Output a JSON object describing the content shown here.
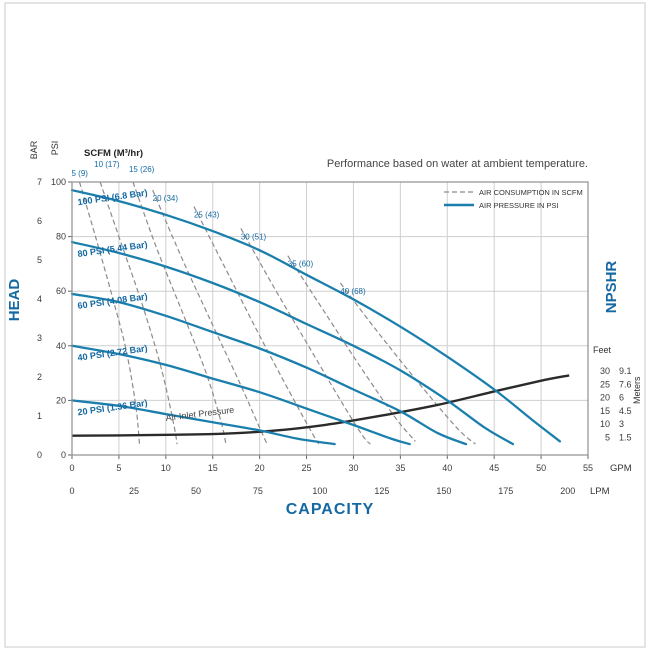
{
  "page": {
    "title": "Performance based on water at ambient temperature."
  },
  "legend": {
    "items": [
      {
        "label": "AIR CONSUMPTION IN SCFM",
        "style": "dashed"
      },
      {
        "label": "AIR PRESSURE IN PSI",
        "style": "solid"
      }
    ]
  },
  "labels": {
    "head": "HEAD",
    "capacity": "CAPACITY",
    "npshr": "NPSHR",
    "bar": "BAR",
    "psi": "PSI",
    "feet": "Feet",
    "meters": "Meters",
    "gpm_unit": "GPM",
    "lpm_unit": "LPM",
    "scfm_header": "SCFM (M³/hr)",
    "air_inlet": "Air Inlet Pressure"
  },
  "colors": {
    "blue": "#1b7fad",
    "labelBlue": "#1369a3",
    "dash": "#8b8b8b",
    "npshr": "#2b2b2b",
    "grid": "#cfcfcf",
    "border": "#8f8f8f",
    "text": "#3c3c3c"
  },
  "chart_data": {
    "type": "line",
    "title": "Performance based on water at ambient temperature.",
    "x_axis": {
      "label": "CAPACITY",
      "units": [
        "GPM",
        "LPM"
      ],
      "gpm_ticks": [
        0,
        5,
        10,
        15,
        20,
        25,
        30,
        35,
        40,
        45,
        50,
        55
      ],
      "lpm_ticks": [
        0,
        25,
        50,
        75,
        100,
        125,
        150,
        175,
        200
      ]
    },
    "y_axis_left": {
      "label": "HEAD",
      "units": [
        "BAR",
        "PSI"
      ],
      "bar_ticks": [
        7,
        6,
        5,
        4,
        3,
        2,
        1,
        0
      ],
      "psi_ticks": [
        100,
        80,
        60,
        40,
        20,
        0
      ],
      "psi_range": [
        0,
        100
      ],
      "bar_range": [
        0,
        7
      ]
    },
    "y_axis_right": {
      "label": "NPSHR",
      "units": [
        "Feet",
        "Meters"
      ],
      "feet_ticks": [
        "30",
        "25",
        "20",
        "15",
        "10",
        "5"
      ],
      "meters_ticks": [
        "9.1",
        "7.6",
        "6",
        "4.5",
        "3",
        "1.5"
      ]
    },
    "pressure_curves": [
      {
        "label": "100 PSI (6.8 Bar)",
        "points": [
          [
            0,
            97
          ],
          [
            5,
            93
          ],
          [
            10,
            88
          ],
          [
            15,
            82
          ],
          [
            20,
            75
          ],
          [
            25,
            66
          ],
          [
            30,
            57
          ],
          [
            35,
            47
          ],
          [
            40,
            36
          ],
          [
            45,
            24
          ],
          [
            49,
            13
          ],
          [
            52,
            5
          ]
        ]
      },
      {
        "label": "80 PSI (5.44 Bar)",
        "points": [
          [
            0,
            78
          ],
          [
            5,
            74
          ],
          [
            10,
            69
          ],
          [
            15,
            63
          ],
          [
            20,
            56
          ],
          [
            25,
            48
          ],
          [
            30,
            40
          ],
          [
            35,
            31
          ],
          [
            40,
            20
          ],
          [
            44,
            10
          ],
          [
            47,
            4
          ]
        ]
      },
      {
        "label": "60 PSI (4.08 Bar)",
        "points": [
          [
            0,
            59
          ],
          [
            5,
            56
          ],
          [
            10,
            51
          ],
          [
            15,
            45
          ],
          [
            20,
            39
          ],
          [
            25,
            32
          ],
          [
            30,
            24
          ],
          [
            35,
            16
          ],
          [
            39,
            8
          ],
          [
            42,
            4
          ]
        ]
      },
      {
        "label": "40 PSI (2.72 Bar)",
        "points": [
          [
            0,
            40
          ],
          [
            5,
            37
          ],
          [
            10,
            33
          ],
          [
            15,
            28
          ],
          [
            20,
            23
          ],
          [
            25,
            17
          ],
          [
            30,
            11
          ],
          [
            34,
            6
          ],
          [
            36,
            4
          ]
        ]
      },
      {
        "label": "20 PSI (1.36 Bar)",
        "points": [
          [
            0,
            20
          ],
          [
            5,
            18
          ],
          [
            10,
            15
          ],
          [
            15,
            12
          ],
          [
            20,
            9
          ],
          [
            24,
            6
          ],
          [
            28,
            4
          ]
        ]
      }
    ],
    "scfm_curves": [
      {
        "label": "5 (9)",
        "points": [
          [
            0.8,
            100
          ],
          [
            2.5,
            80
          ],
          [
            4.3,
            58
          ],
          [
            5.8,
            38
          ],
          [
            6.8,
            18
          ],
          [
            7.2,
            4
          ]
        ]
      },
      {
        "label": "10 (17)",
        "points": [
          [
            3,
            100
          ],
          [
            5.2,
            78
          ],
          [
            7.5,
            55
          ],
          [
            9.5,
            32
          ],
          [
            10.8,
            12
          ],
          [
            11.2,
            4
          ]
        ]
      },
      {
        "label": "15 (26)",
        "points": [
          [
            6.5,
            100
          ],
          [
            9,
            76
          ],
          [
            11.8,
            52
          ],
          [
            14.3,
            30
          ],
          [
            15.9,
            12
          ],
          [
            16.4,
            4
          ]
        ]
      },
      {
        "label": "20 (34)",
        "points": [
          [
            8.6,
            97
          ],
          [
            11.6,
            73
          ],
          [
            14.8,
            49
          ],
          [
            17.8,
            27
          ],
          [
            20,
            10
          ],
          [
            20.8,
            4
          ]
        ]
      },
      {
        "label": "25 (43)",
        "points": [
          [
            13,
            91
          ],
          [
            16.4,
            68
          ],
          [
            19.8,
            45
          ],
          [
            23.2,
            23
          ],
          [
            25.6,
            8
          ],
          [
            26.3,
            4
          ]
        ]
      },
      {
        "label": "30 (51)",
        "points": [
          [
            18,
            83
          ],
          [
            21.6,
            61
          ],
          [
            25.2,
            40
          ],
          [
            28.8,
            19
          ],
          [
            31,
            7
          ],
          [
            31.8,
            4
          ]
        ]
      },
      {
        "label": "35 (60)",
        "points": [
          [
            23,
            73
          ],
          [
            26.8,
            53
          ],
          [
            30.6,
            33
          ],
          [
            34.4,
            14
          ],
          [
            36.6,
            5
          ]
        ]
      },
      {
        "label": "40 (68)",
        "points": [
          [
            28.6,
            63
          ],
          [
            32.6,
            45
          ],
          [
            36.8,
            27
          ],
          [
            41,
            10
          ],
          [
            43,
            4
          ]
        ]
      }
    ],
    "npshr_curve": {
      "label": "NPSHR",
      "points_gpm_feet": [
        [
          0,
          5.5
        ],
        [
          8,
          5.7
        ],
        [
          15,
          6.1
        ],
        [
          21,
          7.2
        ],
        [
          27,
          9.5
        ],
        [
          33,
          13
        ],
        [
          39,
          17
        ],
        [
          45,
          22
        ],
        [
          50,
          26
        ],
        [
          53,
          28
        ]
      ]
    }
  }
}
